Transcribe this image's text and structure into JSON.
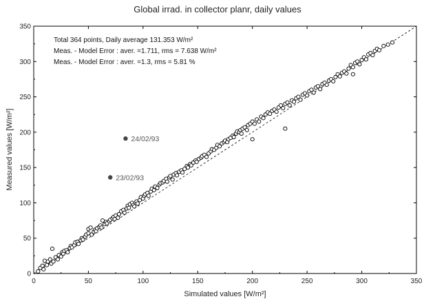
{
  "chart_data": {
    "type": "scatter",
    "title": "Global irrad. in collector planr, daily values",
    "xlabel": "Simulated values  [W/m²]",
    "ylabel": "Measured values  [W/m²]",
    "xlim": [
      0,
      350
    ],
    "ylim": [
      0,
      350
    ],
    "xticks": [
      0,
      50,
      100,
      150,
      200,
      250,
      300,
      350
    ],
    "yticks": [
      0,
      50,
      100,
      150,
      200,
      250,
      300,
      350
    ],
    "grid": false,
    "reference_line": "y = x (dashed)",
    "stats": [
      "Total   364 points, Daily average  131.353 W/m²",
      "Meas. - Model Error  : aver. =1.711, rms = 7.638 W/m²",
      "Meas. - Model Error  : aver. =1.3, rms = 5.81 %"
    ],
    "highlighted_points": [
      {
        "x": 84,
        "y": 191,
        "label": "24/02/93"
      },
      {
        "x": 70,
        "y": 136,
        "label": "23/02/93"
      }
    ],
    "series": [
      {
        "marker": "open-circle",
        "points": [
          [
            4,
            3
          ],
          [
            6,
            8
          ],
          [
            8,
            11
          ],
          [
            9,
            6
          ],
          [
            10,
            18
          ],
          [
            12,
            12
          ],
          [
            13,
            17
          ],
          [
            15,
            20
          ],
          [
            16,
            14
          ],
          [
            17,
            35
          ],
          [
            18,
            17
          ],
          [
            20,
            23
          ],
          [
            22,
            20
          ],
          [
            23,
            26
          ],
          [
            25,
            24
          ],
          [
            26,
            30
          ],
          [
            27,
            28
          ],
          [
            28,
            32
          ],
          [
            30,
            33
          ],
          [
            31,
            30
          ],
          [
            33,
            36
          ],
          [
            34,
            39
          ],
          [
            35,
            37
          ],
          [
            37,
            40
          ],
          [
            38,
            44
          ],
          [
            40,
            45
          ],
          [
            41,
            42
          ],
          [
            43,
            47
          ],
          [
            44,
            50
          ],
          [
            45,
            48
          ],
          [
            47,
            52
          ],
          [
            48,
            55
          ],
          [
            50,
            57
          ],
          [
            50,
            63
          ],
          [
            52,
            65
          ],
          [
            53,
            55
          ],
          [
            55,
            59
          ],
          [
            56,
            62
          ],
          [
            57,
            60
          ],
          [
            58,
            64
          ],
          [
            60,
            66
          ],
          [
            61,
            68
          ],
          [
            62,
            65
          ],
          [
            63,
            75
          ],
          [
            65,
            70
          ],
          [
            66,
            73
          ],
          [
            67,
            71
          ],
          [
            69,
            74
          ],
          [
            70,
            76
          ],
          [
            72,
            78
          ],
          [
            73,
            80
          ],
          [
            74,
            77
          ],
          [
            75,
            82
          ],
          [
            77,
            79
          ],
          [
            78,
            84
          ],
          [
            80,
            88
          ],
          [
            82,
            90
          ],
          [
            83,
            86
          ],
          [
            85,
            92
          ],
          [
            86,
            96
          ],
          [
            87,
            93
          ],
          [
            88,
            98
          ],
          [
            90,
            100
          ],
          [
            91,
            97
          ],
          [
            92,
            95
          ],
          [
            94,
            102
          ],
          [
            95,
            99
          ],
          [
            97,
            104
          ],
          [
            98,
            108
          ],
          [
            100,
            106
          ],
          [
            101,
            110
          ],
          [
            102,
            112
          ],
          [
            104,
            114
          ],
          [
            105,
            110
          ],
          [
            107,
            116
          ],
          [
            108,
            120
          ],
          [
            110,
            118
          ],
          [
            111,
            123
          ],
          [
            113,
            121
          ],
          [
            115,
            126
          ],
          [
            116,
            128
          ],
          [
            118,
            129
          ],
          [
            119,
            131
          ],
          [
            121,
            134
          ],
          [
            122,
            130
          ],
          [
            124,
            136
          ],
          [
            125,
            138
          ],
          [
            127,
            133
          ],
          [
            128,
            140
          ],
          [
            130,
            142
          ],
          [
            131,
            139
          ],
          [
            133,
            144
          ],
          [
            135,
            146
          ],
          [
            136,
            143
          ],
          [
            138,
            148
          ],
          [
            140,
            152
          ],
          [
            141,
            150
          ],
          [
            143,
            155
          ],
          [
            144,
            153
          ],
          [
            146,
            157
          ],
          [
            148,
            160
          ],
          [
            149,
            158
          ],
          [
            151,
            162
          ],
          [
            153,
            164
          ],
          [
            154,
            166
          ],
          [
            156,
            168
          ],
          [
            158,
            165
          ],
          [
            160,
            170
          ],
          [
            162,
            173
          ],
          [
            163,
            176
          ],
          [
            165,
            175
          ],
          [
            167,
            178
          ],
          [
            168,
            182
          ],
          [
            170,
            180
          ],
          [
            172,
            184
          ],
          [
            174,
            186
          ],
          [
            175,
            188
          ],
          [
            177,
            186
          ],
          [
            178,
            190
          ],
          [
            180,
            192
          ],
          [
            182,
            195
          ],
          [
            183,
            193
          ],
          [
            185,
            198
          ],
          [
            186,
            201
          ],
          [
            188,
            200
          ],
          [
            189,
            203
          ],
          [
            190,
            198
          ],
          [
            191,
            205
          ],
          [
            193,
            207
          ],
          [
            195,
            203
          ],
          [
            196,
            210
          ],
          [
            198,
            212
          ],
          [
            200,
            190
          ],
          [
            200,
            215
          ],
          [
            202,
            212
          ],
          [
            204,
            218
          ],
          [
            206,
            215
          ],
          [
            208,
            222
          ],
          [
            210,
            220
          ],
          [
            212,
            225
          ],
          [
            214,
            228
          ],
          [
            216,
            226
          ],
          [
            218,
            230
          ],
          [
            220,
            232
          ],
          [
            222,
            229
          ],
          [
            224,
            235
          ],
          [
            226,
            238
          ],
          [
            228,
            234
          ],
          [
            230,
            205
          ],
          [
            230,
            240
          ],
          [
            232,
            242
          ],
          [
            234,
            238
          ],
          [
            236,
            245
          ],
          [
            238,
            243
          ],
          [
            240,
            248
          ],
          [
            242,
            250
          ],
          [
            244,
            246
          ],
          [
            246,
            253
          ],
          [
            248,
            255
          ],
          [
            250,
            252
          ],
          [
            252,
            258
          ],
          [
            254,
            260
          ],
          [
            256,
            256
          ],
          [
            258,
            263
          ],
          [
            260,
            265
          ],
          [
            262,
            261
          ],
          [
            264,
            268
          ],
          [
            266,
            270
          ],
          [
            268,
            267
          ],
          [
            270,
            273
          ],
          [
            272,
            275
          ],
          [
            274,
            272
          ],
          [
            276,
            278
          ],
          [
            278,
            282
          ],
          [
            280,
            279
          ],
          [
            282,
            284
          ],
          [
            284,
            286
          ],
          [
            286,
            283
          ],
          [
            288,
            290
          ],
          [
            290,
            295
          ],
          [
            292,
            282
          ],
          [
            292,
            292
          ],
          [
            294,
            298
          ],
          [
            296,
            300
          ],
          [
            298,
            296
          ],
          [
            300,
            302
          ],
          [
            302,
            306
          ],
          [
            304,
            303
          ],
          [
            306,
            310
          ],
          [
            308,
            312
          ],
          [
            310,
            309
          ],
          [
            312,
            315
          ],
          [
            314,
            318
          ],
          [
            316,
            316
          ],
          [
            320,
            322
          ],
          [
            324,
            324
          ],
          [
            328,
            327
          ]
        ]
      }
    ]
  }
}
